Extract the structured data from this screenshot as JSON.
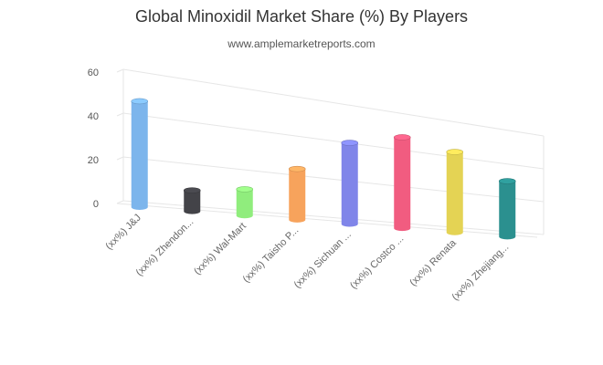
{
  "chart_data": {
    "type": "bar",
    "title": "Global Minoxidil Market Share (%) By Players",
    "subtitle": "www.amplemarketreports.com",
    "categories": [
      "(xx%) J&J",
      "(xx%) Zhendon...",
      "(xx%) Wal-Mart",
      "(xx%) Taisho P...",
      "(xx%) Sichuan ...",
      "(xx%) Costco ...",
      "(xx%) Renata",
      "(xx%) Zhejiang..."
    ],
    "values": [
      49,
      10,
      13,
      26,
      43,
      50,
      46,
      33
    ],
    "colors": [
      "#7cb5ec",
      "#434348",
      "#90ed7d",
      "#f7a35c",
      "#8085e9",
      "#f15c80",
      "#e4d354",
      "#2b908f"
    ],
    "yticks": [
      0,
      20,
      40,
      60
    ],
    "ylim": [
      0,
      60
    ],
    "grid": true,
    "legend": "none"
  }
}
